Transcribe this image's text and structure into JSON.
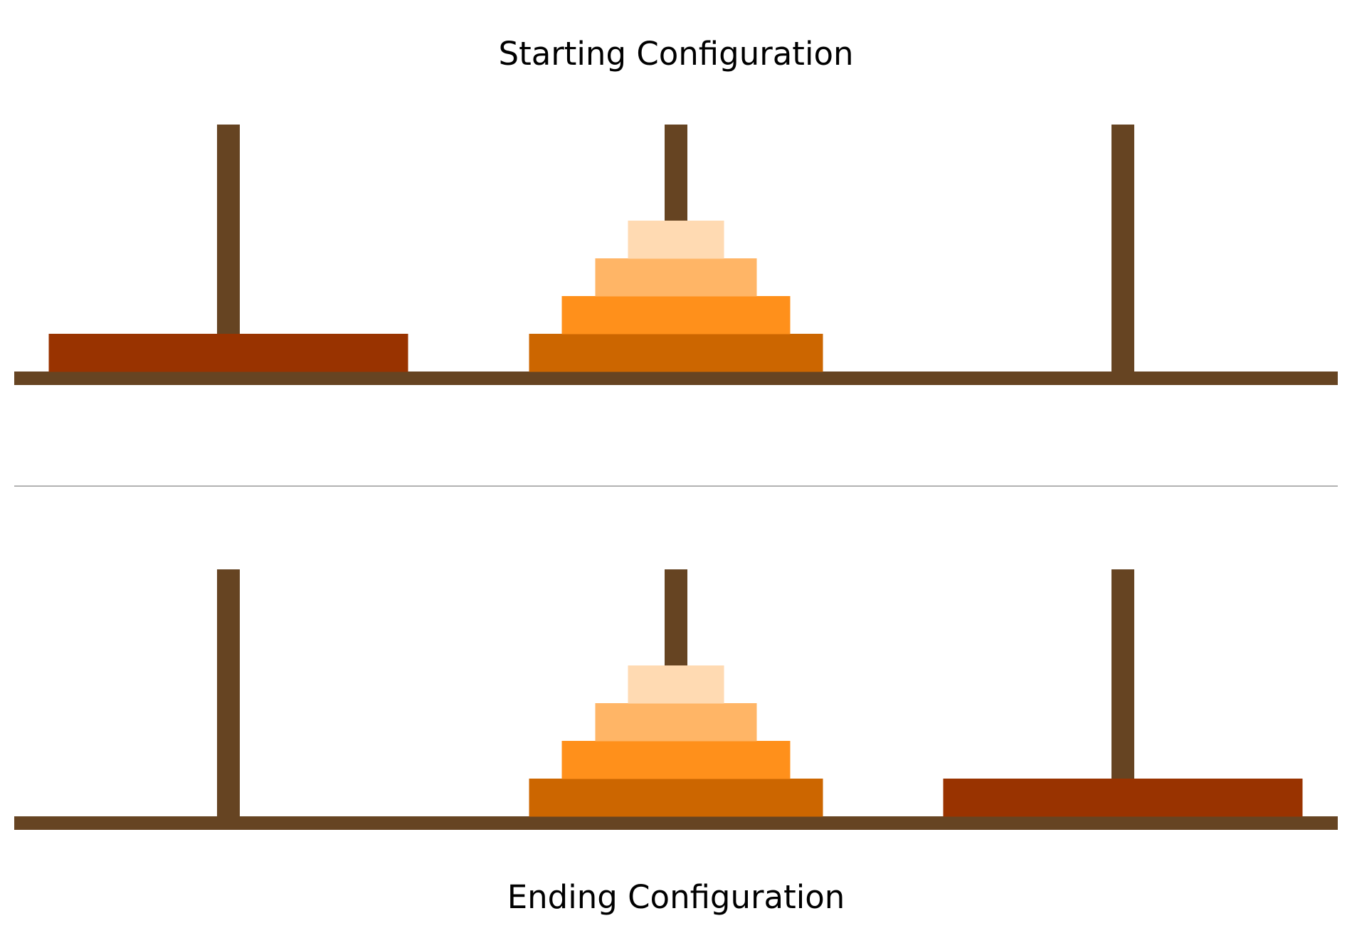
{
  "titles": {
    "start": "Starting Configuration",
    "end": "Ending Configuration"
  },
  "colors": {
    "wood": "#664422",
    "divider": "#999999",
    "disk_largest": "#993300",
    "disk_4": "#cc6600",
    "disk_3": "#ff901b",
    "disk_2": "#ffb566",
    "disk_1": "#ffdab2"
  },
  "configurations": [
    {
      "name": "starting",
      "pegs": [
        {
          "disks": [
            "disk_largest"
          ]
        },
        {
          "disks": [
            "disk_4",
            "disk_3",
            "disk_2",
            "disk_1"
          ]
        },
        {
          "disks": []
        }
      ]
    },
    {
      "name": "ending",
      "pegs": [
        {
          "disks": []
        },
        {
          "disks": [
            "disk_4",
            "disk_3",
            "disk_2",
            "disk_1"
          ]
        },
        {
          "disks": [
            "disk_largest"
          ]
        }
      ]
    }
  ]
}
